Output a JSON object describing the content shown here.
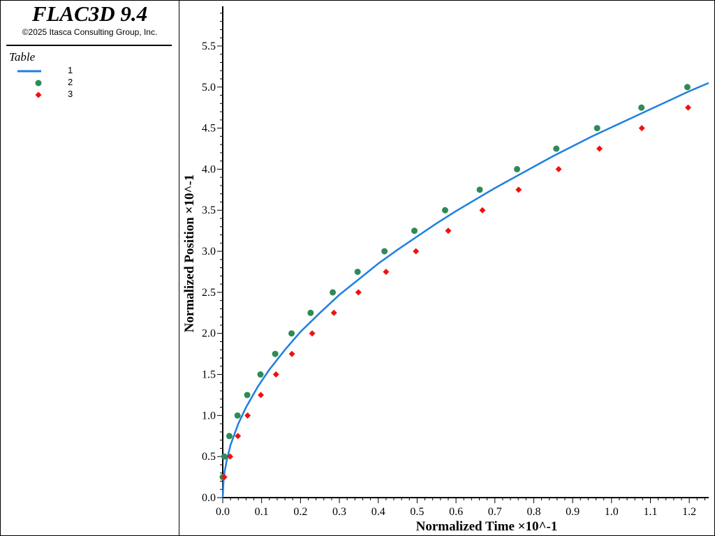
{
  "app": {
    "title": "FLAC3D 9.4",
    "copyright": "©2025 Itasca Consulting Group, Inc."
  },
  "legend": {
    "title": "Table",
    "items": [
      {
        "label": "1",
        "kind": "line",
        "color": "#1e7fe0"
      },
      {
        "label": "2",
        "kind": "circle",
        "color": "#2e8b57"
      },
      {
        "label": "3",
        "kind": "diamond",
        "color": "#ee1111"
      }
    ]
  },
  "chart_data": {
    "type": "scatter",
    "xlabel": "Normalized Time ×10^-1",
    "ylabel": "Normalized Position ×10^-1",
    "xlim": [
      0,
      1.25
    ],
    "ylim": [
      0,
      5.95
    ],
    "x_ticks": [
      "0.0",
      "0.1",
      "0.2",
      "0.3",
      "0.4",
      "0.5",
      "0.6",
      "0.7",
      "0.8",
      "0.9",
      "1.0",
      "1.1",
      "1.2"
    ],
    "y_ticks": [
      "0.0",
      "0.5",
      "1.0",
      "1.5",
      "2.0",
      "2.5",
      "3.0",
      "3.5",
      "4.0",
      "4.5",
      "5.0",
      "5.5"
    ],
    "grid": false,
    "series": [
      {
        "name": "1",
        "kind": "line",
        "color": "#1e7fe0",
        "x": [
          0,
          0.002,
          0.005,
          0.01,
          0.02,
          0.04,
          0.06,
          0.09,
          0.12,
          0.16,
          0.2,
          0.25,
          0.3,
          0.35,
          0.4,
          0.45,
          0.5,
          0.55,
          0.6,
          0.65,
          0.7,
          0.75,
          0.8,
          0.85,
          0.9,
          0.95,
          1.0,
          1.05,
          1.1,
          1.15,
          1.2,
          1.25
        ],
        "y": [
          0,
          0.2,
          0.32,
          0.45,
          0.64,
          0.9,
          1.1,
          1.35,
          1.56,
          1.8,
          2.02,
          2.25,
          2.47,
          2.66,
          2.85,
          3.02,
          3.18,
          3.34,
          3.49,
          3.63,
          3.77,
          3.9,
          4.03,
          4.16,
          4.28,
          4.4,
          4.51,
          4.62,
          4.73,
          4.84,
          4.95,
          5.05
        ]
      },
      {
        "name": "2",
        "kind": "circle",
        "color": "#2e8b57",
        "x": [
          0.0,
          0.004,
          0.017,
          0.038,
          0.063,
          0.097,
          0.135,
          0.177,
          0.226,
          0.283,
          0.347,
          0.416,
          0.493,
          0.572,
          0.661,
          0.757,
          0.858,
          0.963,
          1.077,
          1.195
        ],
        "y": [
          0.25,
          0.5,
          0.75,
          1.0,
          1.25,
          1.5,
          1.75,
          2.0,
          2.25,
          2.5,
          2.75,
          3.0,
          3.25,
          3.5,
          3.75,
          4.0,
          4.25,
          4.5,
          4.75,
          5.0
        ]
      },
      {
        "name": "3",
        "kind": "diamond",
        "color": "#ee1111",
        "x": [
          0.004,
          0.019,
          0.039,
          0.064,
          0.098,
          0.137,
          0.178,
          0.23,
          0.286,
          0.349,
          0.42,
          0.497,
          0.58,
          0.668,
          0.761,
          0.864,
          0.969,
          1.078,
          1.197
        ],
        "y": [
          0.25,
          0.5,
          0.75,
          1.0,
          1.25,
          1.5,
          1.75,
          2.0,
          2.25,
          2.5,
          2.75,
          3.0,
          3.25,
          3.5,
          3.75,
          4.0,
          4.25,
          4.5,
          4.75
        ]
      }
    ]
  }
}
